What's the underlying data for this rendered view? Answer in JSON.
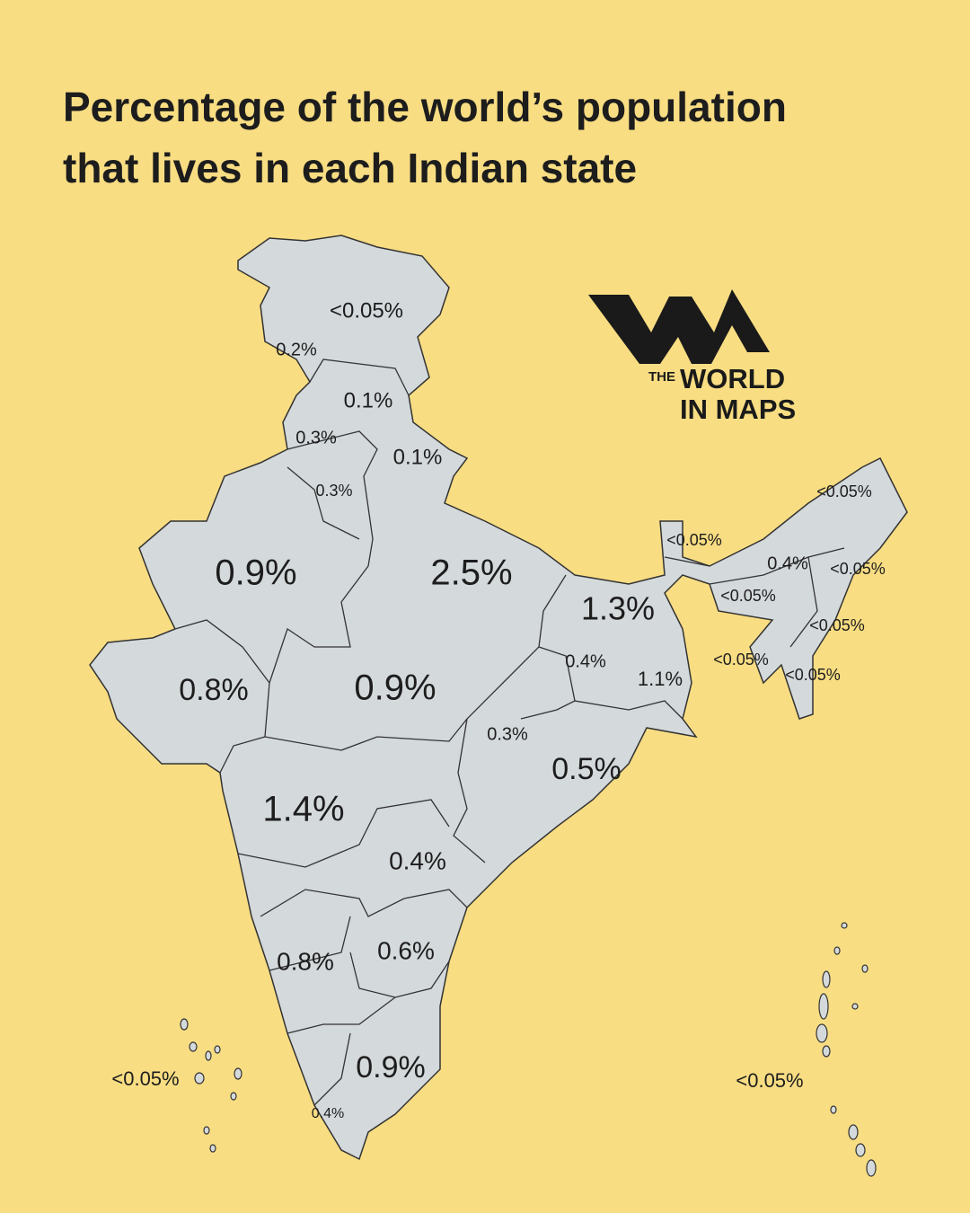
{
  "header": {
    "title_line1": "Percentage of the world’s population",
    "title_line2": "that lives in each Indian state"
  },
  "logo": {
    "the": "THE",
    "world": "WORLD",
    "in_maps": "IN MAPS"
  },
  "map": {
    "labels": [
      "<0.05%",
      "0.2%",
      "0.1%",
      "0.3%",
      "0.1%",
      "0.3%",
      "0.9%",
      "2.5%",
      "1.3%",
      "0.8%",
      "0.9%",
      "0.4%",
      "1.1%",
      "0.3%",
      "0.5%",
      "1.4%",
      "0.4%",
      "0.8%",
      "0.6%",
      "0.9%",
      "0.4%",
      "<0.05%",
      "<0.05%",
      "0.4%",
      "<0.05%",
      "<0.05%",
      "<0.05%",
      "<0.05%",
      "<0.05%",
      "<0.05%",
      "<0.05%"
    ]
  }
}
